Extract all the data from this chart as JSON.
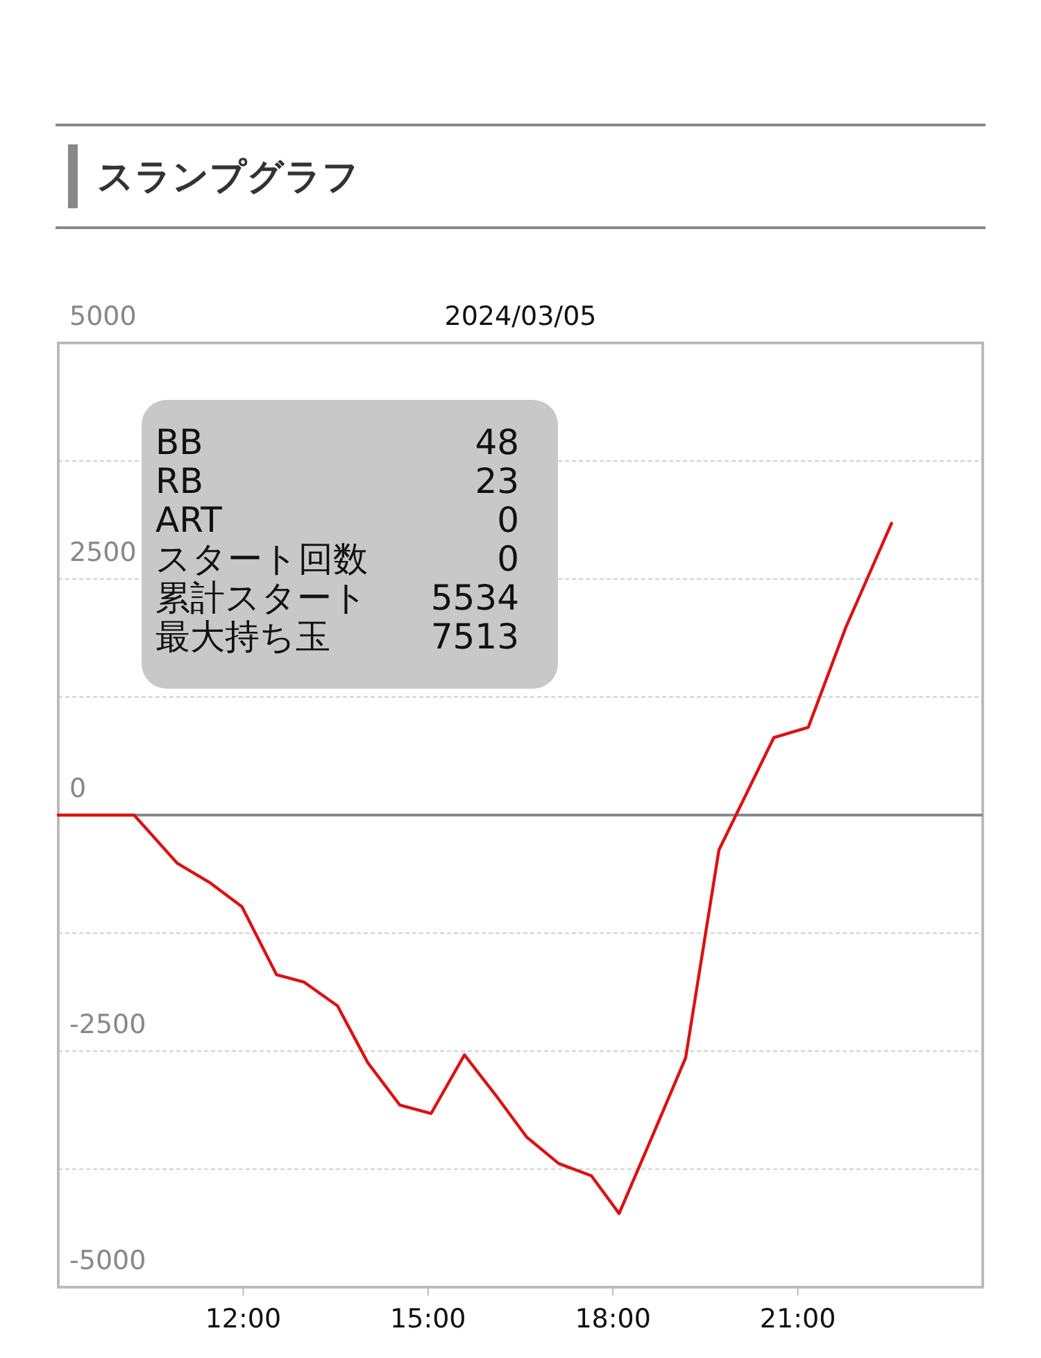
{
  "chart_data": {
    "type": "line",
    "title": "スランプグラフ",
    "subtitle": "2024/03/05",
    "x": [
      9.0,
      10.23,
      10.93,
      11.47,
      11.98,
      12.54,
      12.99,
      13.53,
      14.02,
      14.54,
      15.05,
      15.59,
      16.09,
      16.6,
      17.12,
      17.65,
      18.1,
      18.64,
      19.18,
      19.72,
      20.61,
      21.17,
      21.78,
      22.52
    ],
    "series": [
      {
        "color": "#dd1111",
        "values": [
          0,
          0,
          -510,
          -720,
          -970,
          -1690,
          -1770,
          -2020,
          -2620,
          -3070,
          -3160,
          -2540,
          -2960,
          -3410,
          -3690,
          -3820,
          -4220,
          -3400,
          -2570,
          -370,
          820,
          930,
          1990,
          3090
        ]
      }
    ],
    "xlim": [
      9,
      24
    ],
    "xticks": [
      {
        "value": 12,
        "label": "12:00"
      },
      {
        "value": 15,
        "label": "15:00"
      },
      {
        "value": 18,
        "label": "18:00"
      },
      {
        "value": 21,
        "label": "21:00"
      }
    ],
    "ylim": [
      -5000,
      5000
    ],
    "yticks": [
      -5000,
      {
        "value": -3750,
        "label": null
      },
      -2500,
      {
        "value": -1250,
        "label": null
      },
      0,
      {
        "value": 1250,
        "label": null
      },
      2500,
      {
        "value": 3750,
        "label": null
      },
      5000
    ],
    "grid": "y",
    "marker": "none",
    "line_style": "solid",
    "ref_lines": [
      {
        "axis": "y",
        "value": 0,
        "color": "#888888"
      }
    ],
    "annotations": [
      "BB 48",
      "RB 23",
      "ART 0",
      "スタート回数 0",
      "累計スタート 5534",
      "最大持ち玉 7513"
    ]
  }
}
